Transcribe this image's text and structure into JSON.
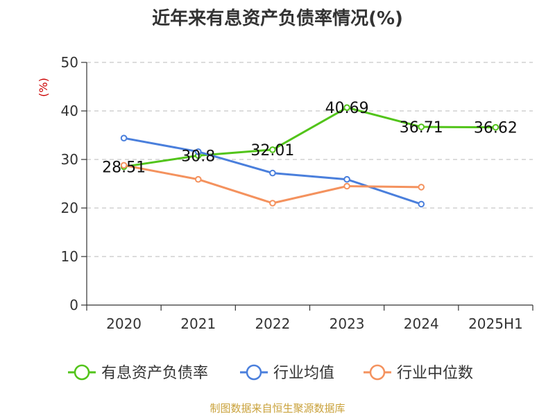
{
  "title": "近年来有息资产负债率情况(%)",
  "source": "制图数据来自恒生聚源数据库",
  "chart_data": {
    "type": "line",
    "title": "近年来有息资产负债率情况(%)",
    "ylabel": "(%)",
    "ylim": [
      0,
      50
    ],
    "yticks": [
      0,
      10,
      20,
      30,
      40,
      50
    ],
    "grid": true,
    "legend_position": "bottom",
    "categories": [
      "2020",
      "2021",
      "2022",
      "2023",
      "2024",
      "2025H1"
    ],
    "series": [
      {
        "name": "有息资产负债率",
        "color": "#52c41a",
        "values": [
          28.51,
          30.8,
          32.01,
          40.69,
          36.71,
          36.62
        ],
        "labels": [
          "28.51",
          "30.8",
          "32.01",
          "40.69",
          "36.71",
          "36.62"
        ]
      },
      {
        "name": "行业均值",
        "color": "#4a7fdc",
        "values": [
          34.4,
          31.6,
          27.2,
          25.9,
          20.8,
          null
        ]
      },
      {
        "name": "行业中位数",
        "color": "#f4925e",
        "values": [
          28.8,
          25.9,
          21.0,
          24.5,
          24.3,
          null
        ]
      }
    ]
  }
}
